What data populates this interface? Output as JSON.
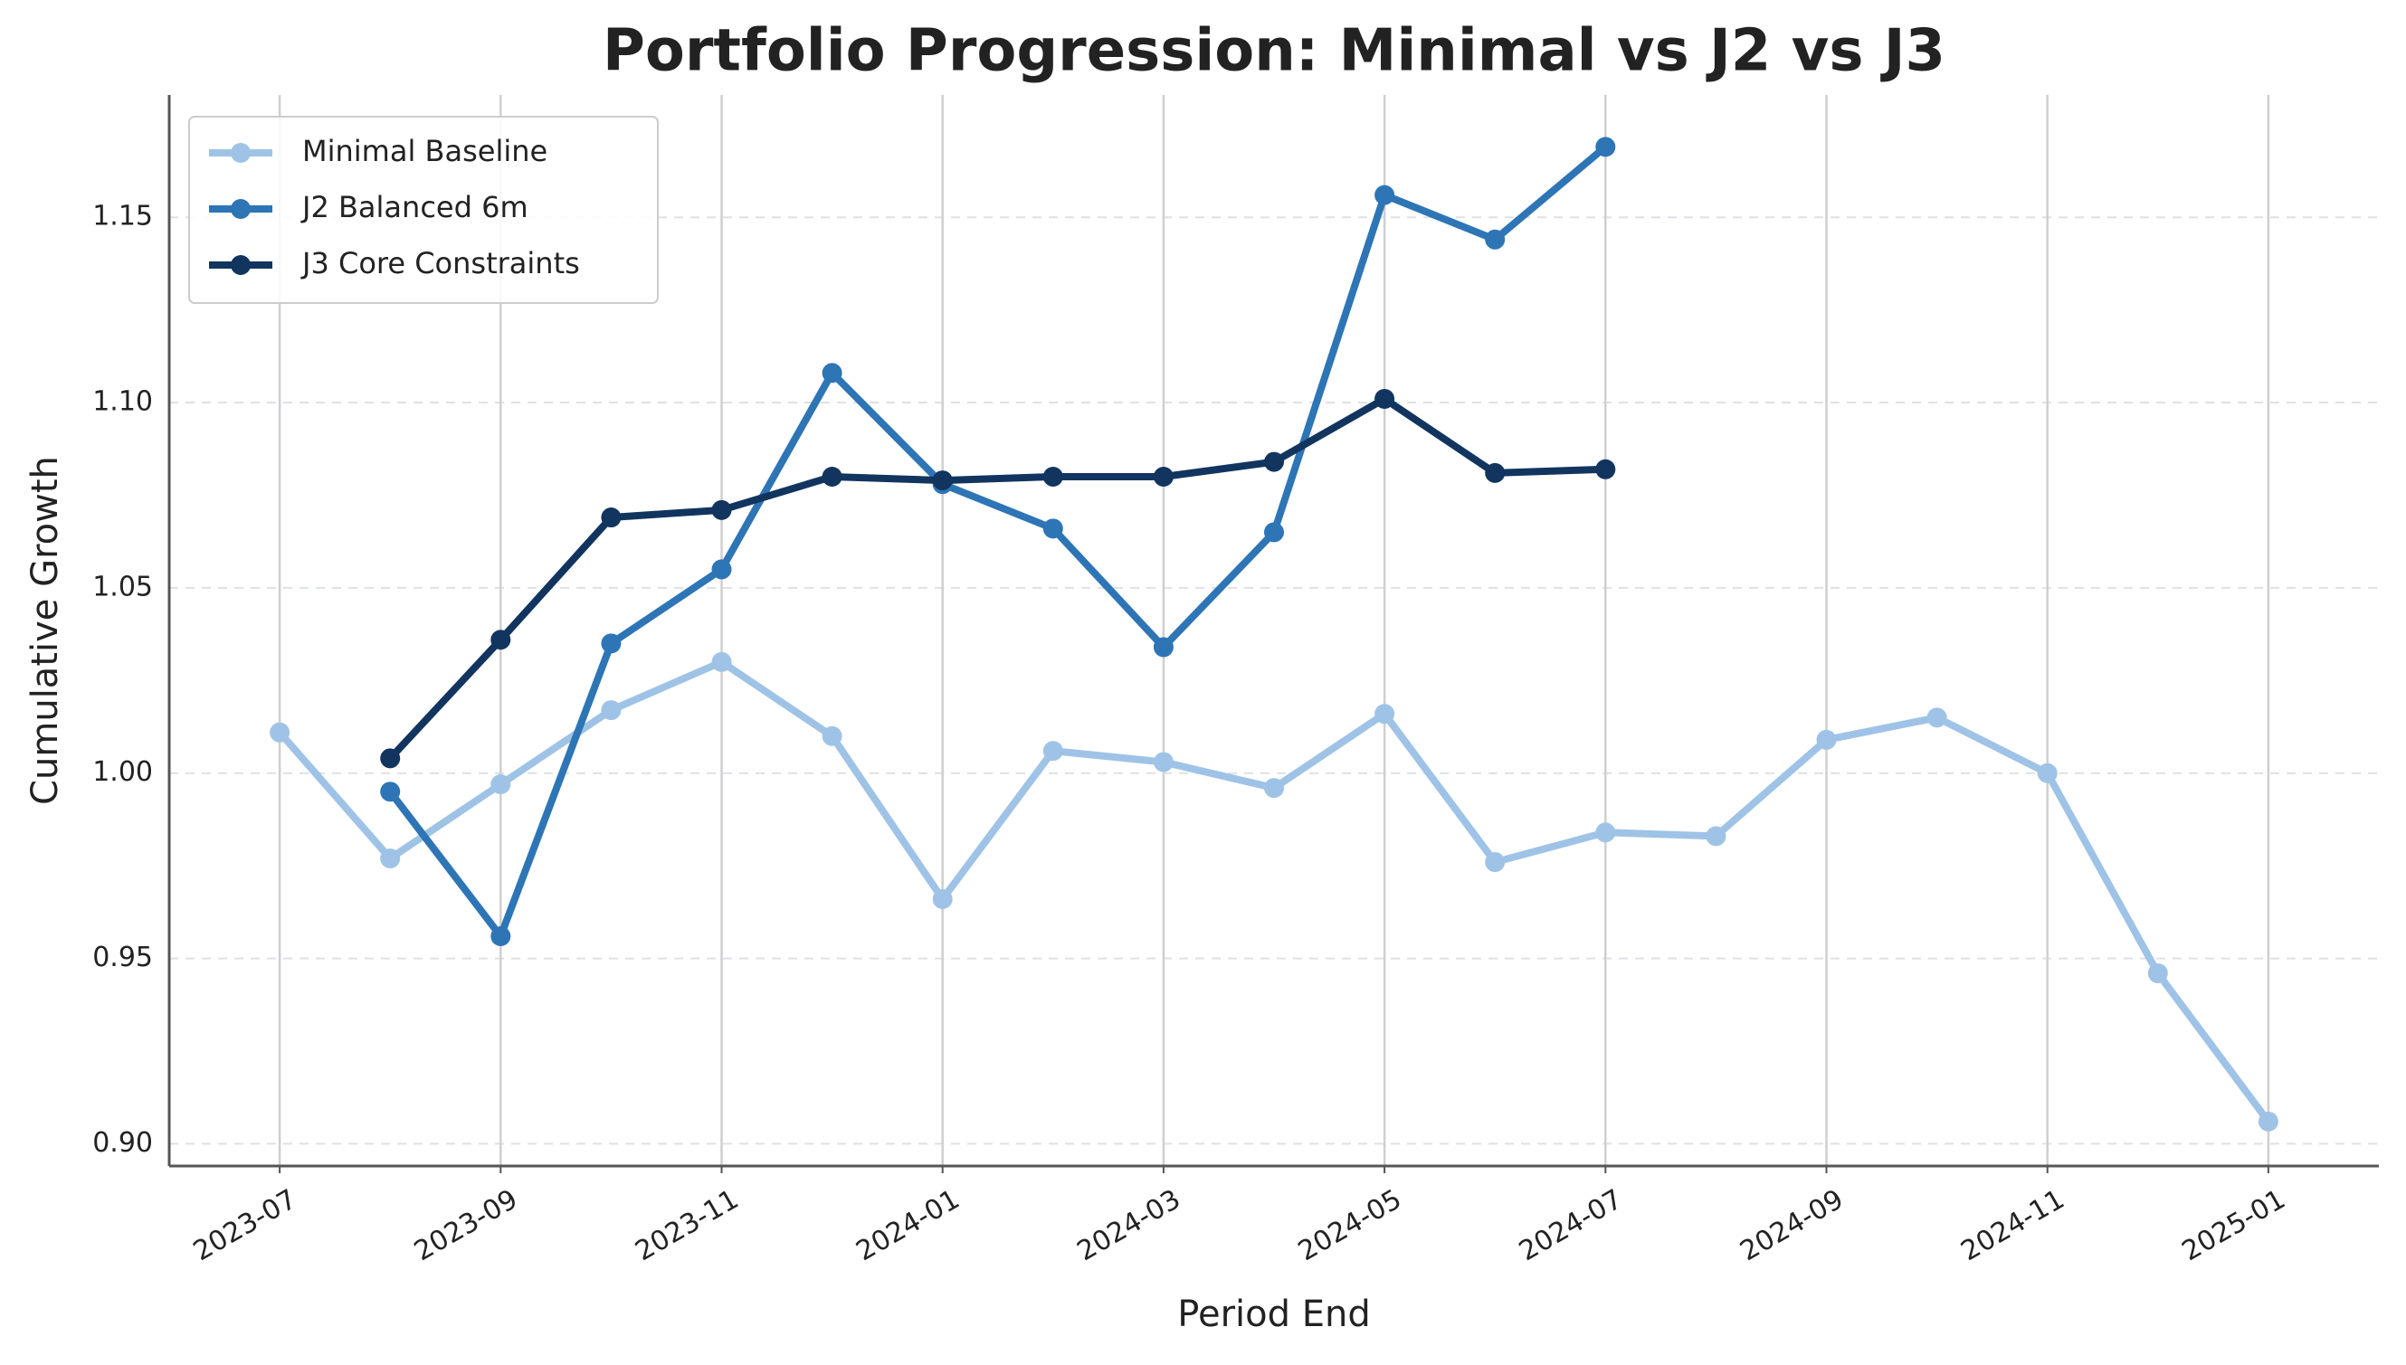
{
  "chart_data": {
    "type": "line",
    "title": "Portfolio Progression: Minimal vs J2 vs J3",
    "xlabel": "Period End",
    "ylabel": "Cumulative Growth",
    "x": [
      "2023-07",
      "2023-08",
      "2023-09",
      "2023-10",
      "2023-11",
      "2023-12",
      "2024-01",
      "2024-02",
      "2024-03",
      "2024-04",
      "2024-05",
      "2024-06",
      "2024-07",
      "2024-08",
      "2024-09",
      "2024-10",
      "2024-11",
      "2024-12",
      "2025-01"
    ],
    "series": [
      {
        "name": "Minimal Baseline",
        "color": "#9fc3e6",
        "values": [
          1.011,
          0.977,
          0.997,
          1.017,
          1.03,
          1.01,
          0.966,
          1.006,
          1.003,
          0.996,
          1.016,
          0.976,
          0.984,
          0.983,
          1.009,
          1.015,
          1.0,
          0.946,
          0.906
        ]
      },
      {
        "name": "J2 Balanced 6m",
        "color": "#2e75b6",
        "values": [
          null,
          0.995,
          0.956,
          1.035,
          1.055,
          1.108,
          1.078,
          1.066,
          1.034,
          1.065,
          1.156,
          1.144,
          1.169,
          null,
          null,
          null,
          null,
          null,
          null
        ]
      },
      {
        "name": "J3 Core Constraints",
        "color": "#12355f",
        "values": [
          null,
          1.004,
          1.036,
          1.069,
          1.071,
          1.08,
          1.079,
          1.08,
          1.08,
          1.084,
          1.101,
          1.081,
          1.082,
          null,
          null,
          null,
          null,
          null,
          null
        ]
      }
    ],
    "xlim": [
      "2023-06",
      "2025-02"
    ],
    "xticks": [
      "2023-07",
      "2023-09",
      "2023-11",
      "2024-01",
      "2024-03",
      "2024-05",
      "2024-07",
      "2024-09",
      "2024-11",
      "2025-01"
    ],
    "ylim": [
      0.894,
      1.183
    ],
    "yticks": [
      {
        "value": 0.9,
        "label": "0.90"
      },
      0.95,
      {
        "value": 1,
        "label": "1.00"
      },
      1.05,
      {
        "value": 1.1,
        "label": "1.10"
      },
      1.15
    ],
    "grid": true,
    "legend": "upper left"
  }
}
